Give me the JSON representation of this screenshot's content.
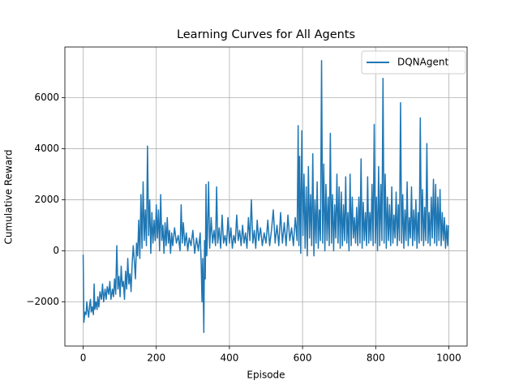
{
  "chart_data": {
    "type": "line",
    "title": "Learning Curves for All Agents",
    "x_label": "Episode",
    "y_label": "Cumulative Reward",
    "xlim": [
      -50,
      1050
    ],
    "ylim": [
      -3730,
      7980
    ],
    "xticks": [
      0,
      200,
      400,
      600,
      800,
      1000
    ],
    "yticks": [
      {
        "value": -2000,
        "label": "−2000"
      },
      0,
      2000,
      4000,
      6000
    ],
    "grid": true,
    "legend": "upper right",
    "series": [
      {
        "name": "DQNAgent",
        "color": "#1f77b4",
        "x": [
          0,
          2,
          5,
          8,
          10,
          12,
          15,
          18,
          20,
          22,
          25,
          28,
          30,
          32,
          35,
          38,
          40,
          43,
          46,
          50,
          53,
          56,
          60,
          63,
          66,
          70,
          73,
          76,
          80,
          83,
          86,
          89,
          92,
          95,
          98,
          101,
          104,
          107,
          110,
          113,
          116,
          119,
          122,
          125,
          128,
          131,
          134,
          137,
          140,
          143,
          146,
          149,
          152,
          155,
          158,
          161,
          164,
          167,
          170,
          173,
          176,
          179,
          182,
          185,
          188,
          191,
          194,
          197,
          200,
          203,
          206,
          209,
          212,
          215,
          218,
          221,
          224,
          227,
          230,
          233,
          236,
          239,
          242,
          245,
          250,
          255,
          260,
          265,
          268,
          271,
          274,
          278,
          282,
          286,
          290,
          295,
          300,
          305,
          310,
          315,
          320,
          323,
          325,
          327,
          330,
          332,
          334,
          336,
          338,
          340,
          343,
          346,
          350,
          354,
          358,
          362,
          365,
          368,
          372,
          376,
          380,
          384,
          388,
          392,
          396,
          400,
          404,
          408,
          412,
          416,
          420,
          424,
          428,
          432,
          436,
          440,
          444,
          448,
          452,
          456,
          460,
          464,
          468,
          472,
          476,
          480,
          485,
          490,
          495,
          500,
          505,
          510,
          515,
          520,
          525,
          530,
          535,
          540,
          545,
          550,
          555,
          560,
          565,
          570,
          575,
          580,
          585,
          588,
          590,
          592,
          595,
          598,
          601,
          604,
          607,
          610,
          613,
          616,
          619,
          622,
          625,
          628,
          631,
          634,
          637,
          640,
          643,
          646,
          649,
          652,
          655,
          658,
          661,
          664,
          667,
          670,
          673,
          676,
          679,
          682,
          685,
          688,
          691,
          694,
          697,
          700,
          703,
          706,
          709,
          712,
          715,
          718,
          721,
          724,
          727,
          730,
          733,
          736,
          739,
          742,
          745,
          748,
          751,
          754,
          757,
          760,
          763,
          766,
          769,
          772,
          775,
          778,
          781,
          784,
          787,
          790,
          793,
          796,
          799,
          802,
          805,
          808,
          811,
          814,
          817,
          820,
          823,
          826,
          829,
          832,
          835,
          838,
          841,
          844,
          847,
          850,
          853,
          856,
          859,
          862,
          865,
          868,
          871,
          874,
          877,
          880,
          883,
          886,
          889,
          892,
          895,
          898,
          901,
          904,
          907,
          910,
          913,
          916,
          919,
          922,
          925,
          928,
          931,
          934,
          937,
          940,
          943,
          946,
          949,
          952,
          955,
          958,
          961,
          964,
          967,
          970,
          973,
          976,
          979,
          982,
          985,
          988,
          991,
          994,
          997,
          999
        ],
        "values": [
          -150,
          -2800,
          -2400,
          -2500,
          -2000,
          -2300,
          -2600,
          -2100,
          -1900,
          -2400,
          -2200,
          -2500,
          -1300,
          -2300,
          -2000,
          -2300,
          -1800,
          -2200,
          -1600,
          -1900,
          -1300,
          -2000,
          -1500,
          -1900,
          -1400,
          -1700,
          -1200,
          -1900,
          -1500,
          -1800,
          -1100,
          -1700,
          200,
          -1500,
          -1000,
          -1800,
          -600,
          -1400,
          -1200,
          -1900,
          -800,
          -1500,
          -300,
          -1300,
          -900,
          -1600,
          -500,
          200,
          -400,
          -1100,
          300,
          -200,
          1200,
          -300,
          2200,
          100,
          2700,
          400,
          1600,
          200,
          4100,
          600,
          2000,
          -100,
          1500,
          300,
          1200,
          400,
          1800,
          500,
          1600,
          0,
          2200,
          400,
          1000,
          -100,
          1100,
          200,
          1300,
          300,
          800,
          -100,
          700,
          200,
          900,
          300,
          600,
          0,
          1800,
          300,
          1100,
          200,
          700,
          0,
          500,
          200,
          800,
          -100,
          500,
          0,
          700,
          -600,
          -2000,
          -300,
          -3200,
          400,
          -1100,
          2600,
          -200,
          600,
          2700,
          100,
          1300,
          300,
          800,
          200,
          2500,
          300,
          900,
          100,
          1400,
          300,
          600,
          200,
          1300,
          300,
          900,
          100,
          600,
          300,
          1400,
          400,
          800,
          200,
          1000,
          300,
          700,
          100,
          1300,
          400,
          2000,
          300,
          800,
          100,
          1200,
          400,
          900,
          200,
          700,
          300,
          1200,
          200,
          800,
          1600,
          300,
          1000,
          200,
          1500,
          300,
          1100,
          200,
          1400,
          400,
          900,
          200,
          1300,
          400,
          4900,
          200,
          3700,
          -100,
          4700,
          600,
          3000,
          100,
          2500,
          -200,
          3300,
          500,
          2200,
          200,
          3800,
          -200,
          2000,
          300,
          2700,
          100,
          1600,
          400,
          7450,
          300,
          3400,
          0,
          2600,
          400,
          2100,
          200,
          4600,
          300,
          2200,
          0,
          1800,
          500,
          3000,
          300,
          2500,
          100,
          2300,
          200,
          1800,
          400,
          2900,
          300,
          1500,
          0,
          3000,
          200,
          2100,
          500,
          1300,
          300,
          1700,
          200,
          2100,
          300,
          3600,
          100,
          1900,
          400,
          1500,
          200,
          2900,
          300,
          1500,
          400,
          2600,
          200,
          4950,
          300,
          2100,
          0,
          3300,
          200,
          2600,
          400,
          6750,
          300,
          3000,
          100,
          2100,
          400,
          1800,
          200,
          2500,
          300,
          1400,
          500,
          2300,
          200,
          1800,
          400,
          5800,
          300,
          2200,
          100,
          1600,
          400,
          2700,
          200,
          1300,
          500,
          2500,
          200,
          1600,
          400,
          2000,
          100,
          1500,
          300,
          5200,
          400,
          2400,
          200,
          1700,
          400,
          4200,
          300,
          1500,
          200,
          2100,
          500,
          2800,
          300,
          2600,
          200,
          2100,
          400,
          2400,
          200,
          1500,
          400,
          1300,
          100,
          1000,
          200,
          1000
        ]
      }
    ]
  }
}
